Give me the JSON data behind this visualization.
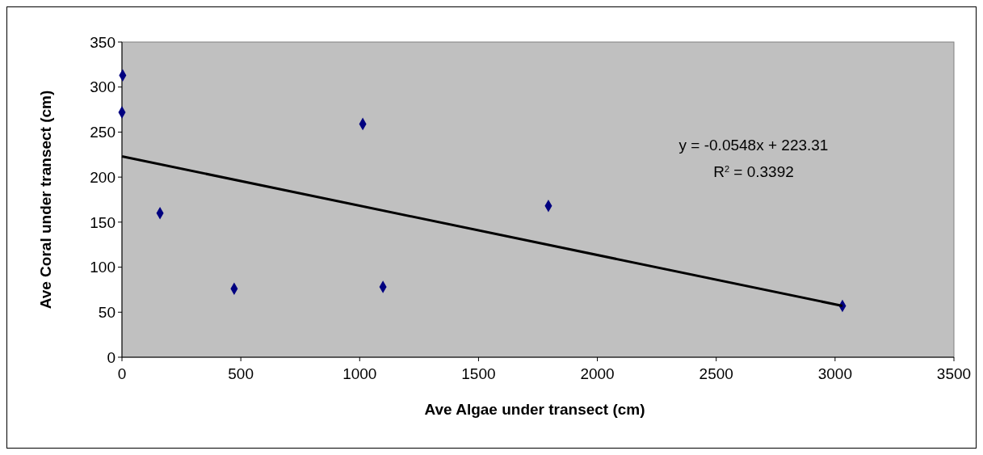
{
  "chart_data": {
    "type": "scatter",
    "xlabel": "Ave Algae under transect (cm)",
    "ylabel": "Ave Coral under transect (cm)",
    "series": [
      {
        "color": "#000080",
        "marker": "diamond",
        "x": [
          0,
          3,
          160,
          472,
          1013,
          1098,
          1794,
          3031
        ],
        "values": [
          272,
          313,
          160,
          76,
          259,
          78,
          168,
          57
        ]
      },
      {
        "type": "line",
        "color": "#000000",
        "x": [
          0,
          3031
        ],
        "values": [
          223,
          57
        ]
      }
    ],
    "xlim": [
      0,
      3500
    ],
    "xticks": [
      0,
      500,
      1000,
      1500,
      2000,
      2500,
      3000,
      3500
    ],
    "ylim": [
      0,
      350
    ],
    "yticks": [
      0,
      50,
      100,
      150,
      200,
      250,
      300,
      350
    ],
    "annotations": [
      "y = -0.0548x + 223.31",
      "R$^{2}$ = 0.3392"
    ],
    "grid": false
  }
}
